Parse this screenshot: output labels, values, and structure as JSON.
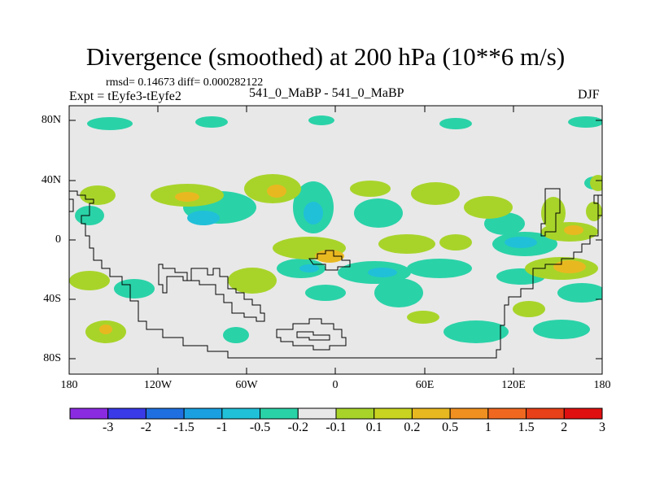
{
  "title": "Divergence (smoothed) at 200 hPa (10**6 m/s)",
  "stats": "rmsd= 0.14673  diff= 0.000282122",
  "experiment": "Expt = tEyfe3-tEyfe2",
  "comparison": "541_0_MaBP - 541_0_MaBP",
  "season": "DJF",
  "axes": {
    "y_ticks": [
      "80N",
      "40N",
      "0",
      "40S",
      "80S"
    ],
    "x_ticks": [
      "180",
      "120W",
      "60W",
      "0",
      "60E",
      "120E",
      "180"
    ]
  },
  "colorbar": {
    "labels": [
      "-3",
      "-2",
      "-1.5",
      "-1",
      "-0.5",
      "-0.2",
      "-0.1",
      "0.1",
      "0.2",
      "0.5",
      "1",
      "1.5",
      "2",
      "3"
    ],
    "colors": [
      "#8a2be2",
      "#3a3ae8",
      "#1f6fe0",
      "#1aa0e0",
      "#20c0d8",
      "#2ad2a8",
      "#e8e8e8",
      "#a8d42a",
      "#c8d420",
      "#e8b820",
      "#f09020",
      "#f06820",
      "#e84018",
      "#e01010"
    ]
  },
  "colors": {
    "background": "#e8e8e8",
    "neg_light": "#2ad2a8",
    "neg_mid": "#20c0d8",
    "pos_light": "#a8d42a",
    "pos_mid": "#c8d420",
    "pos_strong": "#e8b820"
  }
}
